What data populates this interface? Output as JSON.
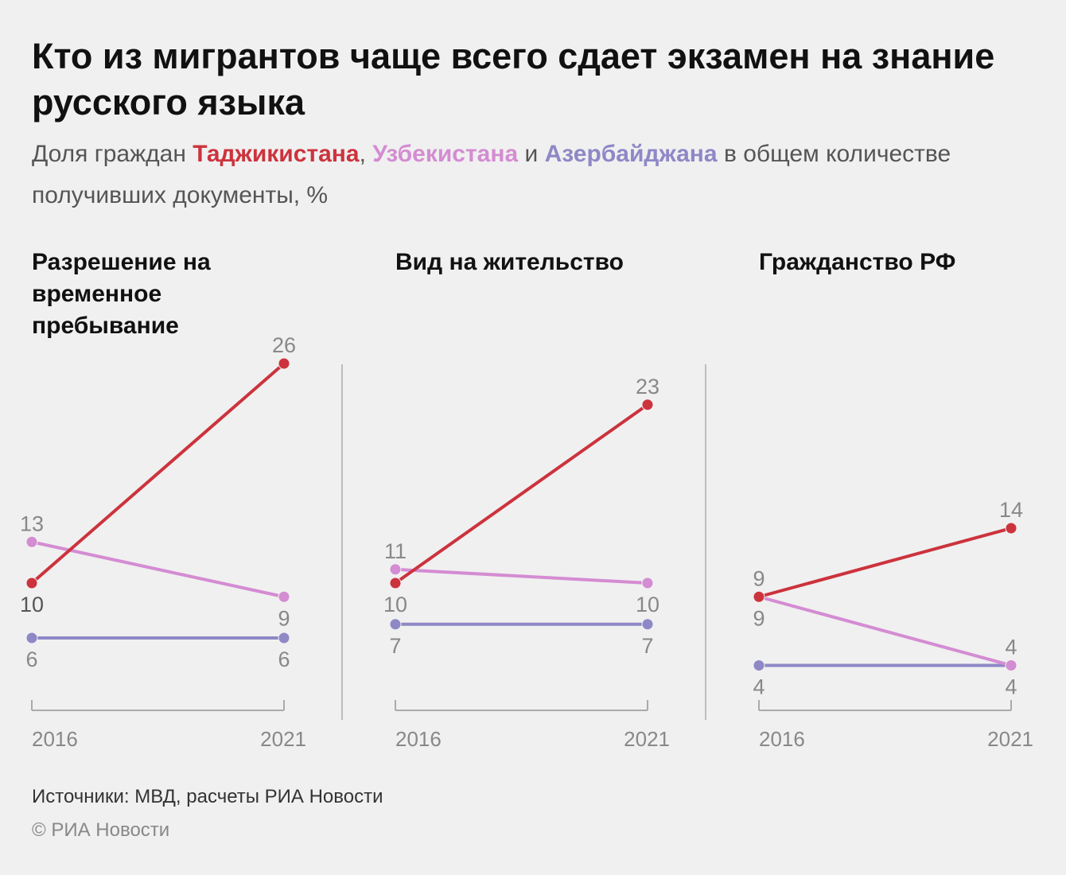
{
  "title": "Кто из мигрантов чаще всего сдает экзамен на знание русского языка",
  "subtitle": {
    "prefix": "Доля граждан ",
    "tj": "Таджикистана",
    "sep1": ", ",
    "uz": "Узбекистана",
    "sep2": " и ",
    "az": "Азербайджана",
    "suffix": " в общем количестве получивших документы, %"
  },
  "colors": {
    "tajikistan": "#cc333d",
    "uzbekistan": "#d48cd2",
    "azerbaijan": "#8e88c7",
    "axis": "#aaaaaa",
    "label": "#888888"
  },
  "chart_data": [
    {
      "type": "line",
      "title": "Разрешение на временное пребывание",
      "x": [
        "2016",
        "2021"
      ],
      "series": [
        {
          "key": "tajikistan",
          "values": [
            10,
            26
          ]
        },
        {
          "key": "uzbekistan",
          "values": [
            13,
            9
          ]
        },
        {
          "key": "azerbaijan",
          "values": [
            6,
            6
          ]
        }
      ]
    },
    {
      "type": "line",
      "title": "Вид на жительство",
      "x": [
        "2016",
        "2021"
      ],
      "series": [
        {
          "key": "tajikistan",
          "values": [
            10,
            23
          ]
        },
        {
          "key": "uzbekistan",
          "values": [
            11,
            10
          ]
        },
        {
          "key": "azerbaijan",
          "values": [
            7,
            7
          ]
        }
      ]
    },
    {
      "type": "line",
      "title": "Гражданство РФ",
      "x": [
        "2016",
        "2021"
      ],
      "series": [
        {
          "key": "tajikistan",
          "values": [
            9,
            14
          ]
        },
        {
          "key": "uzbekistan",
          "values": [
            9,
            4
          ]
        },
        {
          "key": "azerbaijan",
          "values": [
            4,
            4
          ]
        }
      ]
    }
  ],
  "source": "Источники: МВД, расчеты РИА Новости",
  "copyright": "© РИА Новости"
}
